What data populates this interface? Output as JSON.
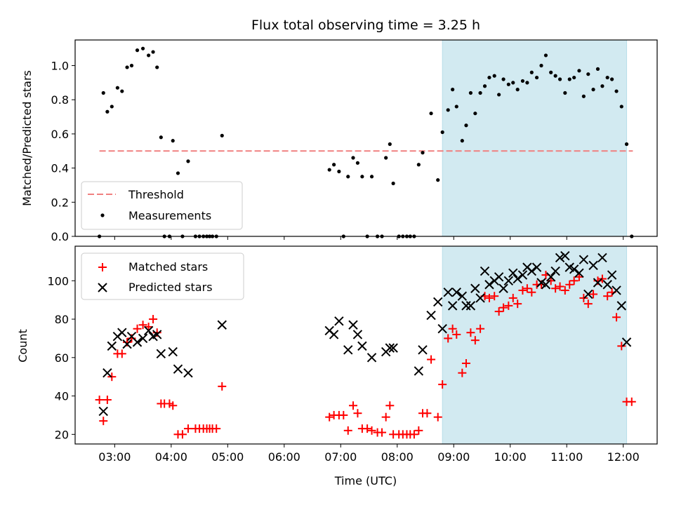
{
  "chart_data": [
    {
      "type": "scatter",
      "title": "Flux total observing time = 3.25 h",
      "ylabel": "Matched/Predicted stars",
      "xlabel": "",
      "xlim": [
        2.3,
        12.6
      ],
      "ylim": [
        0,
        1.15
      ],
      "yticks": [
        "0.0",
        "0.2",
        "0.4",
        "0.6",
        "0.8",
        "1.0"
      ],
      "shaded_region": [
        8.8,
        12.06
      ],
      "threshold": {
        "name": "Threshold",
        "value": 0.5,
        "x_range": [
          2.73,
          12.17
        ],
        "color": "#f08080"
      },
      "legend": {
        "position": "lower-left",
        "entries": [
          "Threshold",
          "Measurements"
        ]
      },
      "series": [
        {
          "name": "Measurements",
          "color": "#000000",
          "points": [
            [
              2.73,
              0.0
            ],
            [
              2.8,
              0.84
            ],
            [
              2.87,
              0.73
            ],
            [
              2.95,
              0.76
            ],
            [
              3.05,
              0.87
            ],
            [
              3.13,
              0.85
            ],
            [
              3.22,
              0.99
            ],
            [
              3.3,
              1.0
            ],
            [
              3.4,
              1.09
            ],
            [
              3.5,
              1.1
            ],
            [
              3.6,
              1.06
            ],
            [
              3.68,
              1.08
            ],
            [
              3.75,
              0.99
            ],
            [
              3.82,
              0.58
            ],
            [
              3.88,
              0.0
            ],
            [
              3.97,
              0.0
            ],
            [
              4.03,
              0.56
            ],
            [
              4.12,
              0.37
            ],
            [
              4.2,
              0.0
            ],
            [
              4.3,
              0.44
            ],
            [
              4.43,
              0.0
            ],
            [
              4.5,
              0.0
            ],
            [
              4.57,
              0.0
            ],
            [
              4.63,
              0.0
            ],
            [
              4.68,
              0.0
            ],
            [
              4.73,
              0.0
            ],
            [
              4.8,
              0.0
            ],
            [
              4.9,
              0.59
            ],
            [
              6.8,
              0.39
            ],
            [
              6.88,
              0.42
            ],
            [
              6.97,
              0.38
            ],
            [
              7.05,
              0.0
            ],
            [
              7.13,
              0.35
            ],
            [
              7.22,
              0.46
            ],
            [
              7.3,
              0.43
            ],
            [
              7.38,
              0.35
            ],
            [
              7.47,
              0.0
            ],
            [
              7.55,
              0.35
            ],
            [
              7.65,
              0.0
            ],
            [
              7.73,
              0.0
            ],
            [
              7.8,
              0.46
            ],
            [
              7.87,
              0.54
            ],
            [
              7.93,
              0.31
            ],
            [
              8.03,
              0.0
            ],
            [
              8.1,
              0.0
            ],
            [
              8.17,
              0.0
            ],
            [
              8.23,
              0.0
            ],
            [
              8.3,
              0.0
            ],
            [
              8.38,
              0.42
            ],
            [
              8.45,
              0.49
            ],
            [
              8.6,
              0.72
            ],
            [
              8.72,
              0.33
            ],
            [
              8.8,
              0.61
            ],
            [
              8.9,
              0.74
            ],
            [
              8.98,
              0.86
            ],
            [
              9.05,
              0.76
            ],
            [
              9.15,
              0.56
            ],
            [
              9.22,
              0.65
            ],
            [
              9.3,
              0.84
            ],
            [
              9.38,
              0.72
            ],
            [
              9.47,
              0.84
            ],
            [
              9.55,
              0.88
            ],
            [
              9.63,
              0.93
            ],
            [
              9.72,
              0.94
            ],
            [
              9.8,
              0.83
            ],
            [
              9.88,
              0.92
            ],
            [
              9.97,
              0.89
            ],
            [
              10.05,
              0.9
            ],
            [
              10.13,
              0.86
            ],
            [
              10.22,
              0.91
            ],
            [
              10.3,
              0.9
            ],
            [
              10.38,
              0.96
            ],
            [
              10.47,
              0.93
            ],
            [
              10.55,
              1.0
            ],
            [
              10.63,
              1.06
            ],
            [
              10.72,
              0.96
            ],
            [
              10.8,
              0.94
            ],
            [
              10.88,
              0.92
            ],
            [
              10.97,
              0.84
            ],
            [
              11.05,
              0.92
            ],
            [
              11.13,
              0.93
            ],
            [
              11.22,
              0.97
            ],
            [
              11.3,
              0.82
            ],
            [
              11.38,
              0.95
            ],
            [
              11.47,
              0.86
            ],
            [
              11.55,
              0.98
            ],
            [
              11.63,
              0.88
            ],
            [
              11.72,
              0.93
            ],
            [
              11.8,
              0.92
            ],
            [
              11.88,
              0.85
            ],
            [
              11.97,
              0.76
            ],
            [
              12.06,
              0.54
            ],
            [
              12.15,
              0.0
            ]
          ]
        }
      ]
    },
    {
      "type": "scatter",
      "title": "",
      "ylabel": "Count",
      "xlabel": "Time (UTC)",
      "xlim": [
        2.3,
        12.6
      ],
      "ylim": [
        15,
        118
      ],
      "yticks": [
        "20",
        "40",
        "60",
        "80",
        "100"
      ],
      "xticks": [
        "03:00",
        "04:00",
        "05:00",
        "06:00",
        "07:00",
        "08:00",
        "09:00",
        "10:00",
        "11:00",
        "12:00"
      ],
      "shaded_region": [
        8.8,
        12.06
      ],
      "legend": {
        "position": "upper-left",
        "entries": [
          "Matched stars",
          "Predicted stars"
        ]
      },
      "series": [
        {
          "name": "Matched stars",
          "marker": "plus",
          "color": "#ff0000",
          "points": [
            [
              2.73,
              38
            ],
            [
              2.8,
              27
            ],
            [
              2.87,
              38
            ],
            [
              2.95,
              50
            ],
            [
              3.05,
              62
            ],
            [
              3.13,
              62
            ],
            [
              3.22,
              68
            ],
            [
              3.3,
              70
            ],
            [
              3.4,
              75
            ],
            [
              3.5,
              77
            ],
            [
              3.6,
              76
            ],
            [
              3.68,
              80
            ],
            [
              3.75,
              73
            ],
            [
              3.82,
              36
            ],
            [
              3.88,
              36
            ],
            [
              3.97,
              36
            ],
            [
              4.03,
              35
            ],
            [
              4.12,
              20
            ],
            [
              4.2,
              20
            ],
            [
              4.3,
              23
            ],
            [
              4.43,
              23
            ],
            [
              4.5,
              23
            ],
            [
              4.57,
              23
            ],
            [
              4.63,
              23
            ],
            [
              4.68,
              23
            ],
            [
              4.73,
              23
            ],
            [
              4.8,
              23
            ],
            [
              4.9,
              45
            ],
            [
              6.8,
              29
            ],
            [
              6.88,
              30
            ],
            [
              6.97,
              30
            ],
            [
              7.05,
              30
            ],
            [
              7.13,
              22
            ],
            [
              7.22,
              35
            ],
            [
              7.3,
              31
            ],
            [
              7.38,
              23
            ],
            [
              7.47,
              23
            ],
            [
              7.55,
              22
            ],
            [
              7.65,
              21
            ],
            [
              7.73,
              21
            ],
            [
              7.8,
              29
            ],
            [
              7.87,
              35
            ],
            [
              7.93,
              20
            ],
            [
              8.03,
              20
            ],
            [
              8.1,
              20
            ],
            [
              8.17,
              20
            ],
            [
              8.23,
              20
            ],
            [
              8.3,
              20
            ],
            [
              8.38,
              22
            ],
            [
              8.45,
              31
            ],
            [
              8.53,
              31
            ],
            [
              8.6,
              59
            ],
            [
              8.72,
              29
            ],
            [
              8.8,
              46
            ],
            [
              8.9,
              70
            ],
            [
              8.98,
              75
            ],
            [
              9.05,
              72
            ],
            [
              9.15,
              52
            ],
            [
              9.22,
              57
            ],
            [
              9.3,
              73
            ],
            [
              9.38,
              69
            ],
            [
              9.47,
              75
            ],
            [
              9.55,
              92
            ],
            [
              9.63,
              91
            ],
            [
              9.72,
              92
            ],
            [
              9.8,
              84
            ],
            [
              9.88,
              86
            ],
            [
              9.97,
              87
            ],
            [
              10.05,
              91
            ],
            [
              10.13,
              88
            ],
            [
              10.22,
              95
            ],
            [
              10.3,
              96
            ],
            [
              10.38,
              94
            ],
            [
              10.47,
              98
            ],
            [
              10.55,
              98
            ],
            [
              10.63,
              103
            ],
            [
              10.72,
              100
            ],
            [
              10.8,
              96
            ],
            [
              10.88,
              97
            ],
            [
              10.97,
              95
            ],
            [
              11.05,
              98
            ],
            [
              11.13,
              100
            ],
            [
              11.22,
              102
            ],
            [
              11.3,
              91
            ],
            [
              11.38,
              88
            ],
            [
              11.47,
              93
            ],
            [
              11.55,
              100
            ],
            [
              11.63,
              101
            ],
            [
              11.72,
              92
            ],
            [
              11.8,
              94
            ],
            [
              11.88,
              81
            ],
            [
              11.97,
              66
            ],
            [
              12.06,
              37
            ],
            [
              12.15,
              37
            ]
          ]
        },
        {
          "name": "Predicted stars",
          "marker": "x",
          "color": "#000000",
          "points": [
            [
              2.8,
              32
            ],
            [
              2.87,
              52
            ],
            [
              2.95,
              66
            ],
            [
              3.05,
              71
            ],
            [
              3.13,
              73
            ],
            [
              3.22,
              67
            ],
            [
              3.3,
              71
            ],
            [
              3.4,
              68
            ],
            [
              3.5,
              70
            ],
            [
              3.6,
              74
            ],
            [
              3.68,
              71
            ],
            [
              3.75,
              72
            ],
            [
              3.82,
              62
            ],
            [
              4.03,
              63
            ],
            [
              4.12,
              54
            ],
            [
              4.3,
              52
            ],
            [
              4.9,
              77
            ],
            [
              6.8,
              74
            ],
            [
              6.88,
              72
            ],
            [
              6.97,
              79
            ],
            [
              7.13,
              64
            ],
            [
              7.22,
              77
            ],
            [
              7.3,
              72
            ],
            [
              7.38,
              66
            ],
            [
              7.55,
              60
            ],
            [
              7.8,
              63
            ],
            [
              7.87,
              65
            ],
            [
              7.93,
              65
            ],
            [
              8.38,
              53
            ],
            [
              8.45,
              64
            ],
            [
              8.6,
              82
            ],
            [
              8.72,
              89
            ],
            [
              8.8,
              75
            ],
            [
              8.9,
              94
            ],
            [
              8.98,
              87
            ],
            [
              9.05,
              94
            ],
            [
              9.15,
              92
            ],
            [
              9.22,
              87
            ],
            [
              9.3,
              87
            ],
            [
              9.38,
              96
            ],
            [
              9.47,
              91
            ],
            [
              9.55,
              105
            ],
            [
              9.63,
              98
            ],
            [
              9.72,
              100
            ],
            [
              9.8,
              102
            ],
            [
              9.88,
              96
            ],
            [
              9.97,
              100
            ],
            [
              10.05,
              104
            ],
            [
              10.13,
              101
            ],
            [
              10.22,
              103
            ],
            [
              10.3,
              107
            ],
            [
              10.38,
              105
            ],
            [
              10.47,
              107
            ],
            [
              10.55,
              99
            ],
            [
              10.63,
              98
            ],
            [
              10.72,
              102
            ],
            [
              10.8,
              105
            ],
            [
              10.88,
              112
            ],
            [
              10.97,
              113
            ],
            [
              11.05,
              107
            ],
            [
              11.13,
              106
            ],
            [
              11.22,
              104
            ],
            [
              11.3,
              111
            ],
            [
              11.38,
              93
            ],
            [
              11.47,
              108
            ],
            [
              11.55,
              99
            ],
            [
              11.63,
              112
            ],
            [
              11.72,
              98
            ],
            [
              11.8,
              103
            ],
            [
              11.88,
              95
            ],
            [
              11.97,
              87
            ],
            [
              12.06,
              68
            ]
          ]
        }
      ]
    }
  ]
}
